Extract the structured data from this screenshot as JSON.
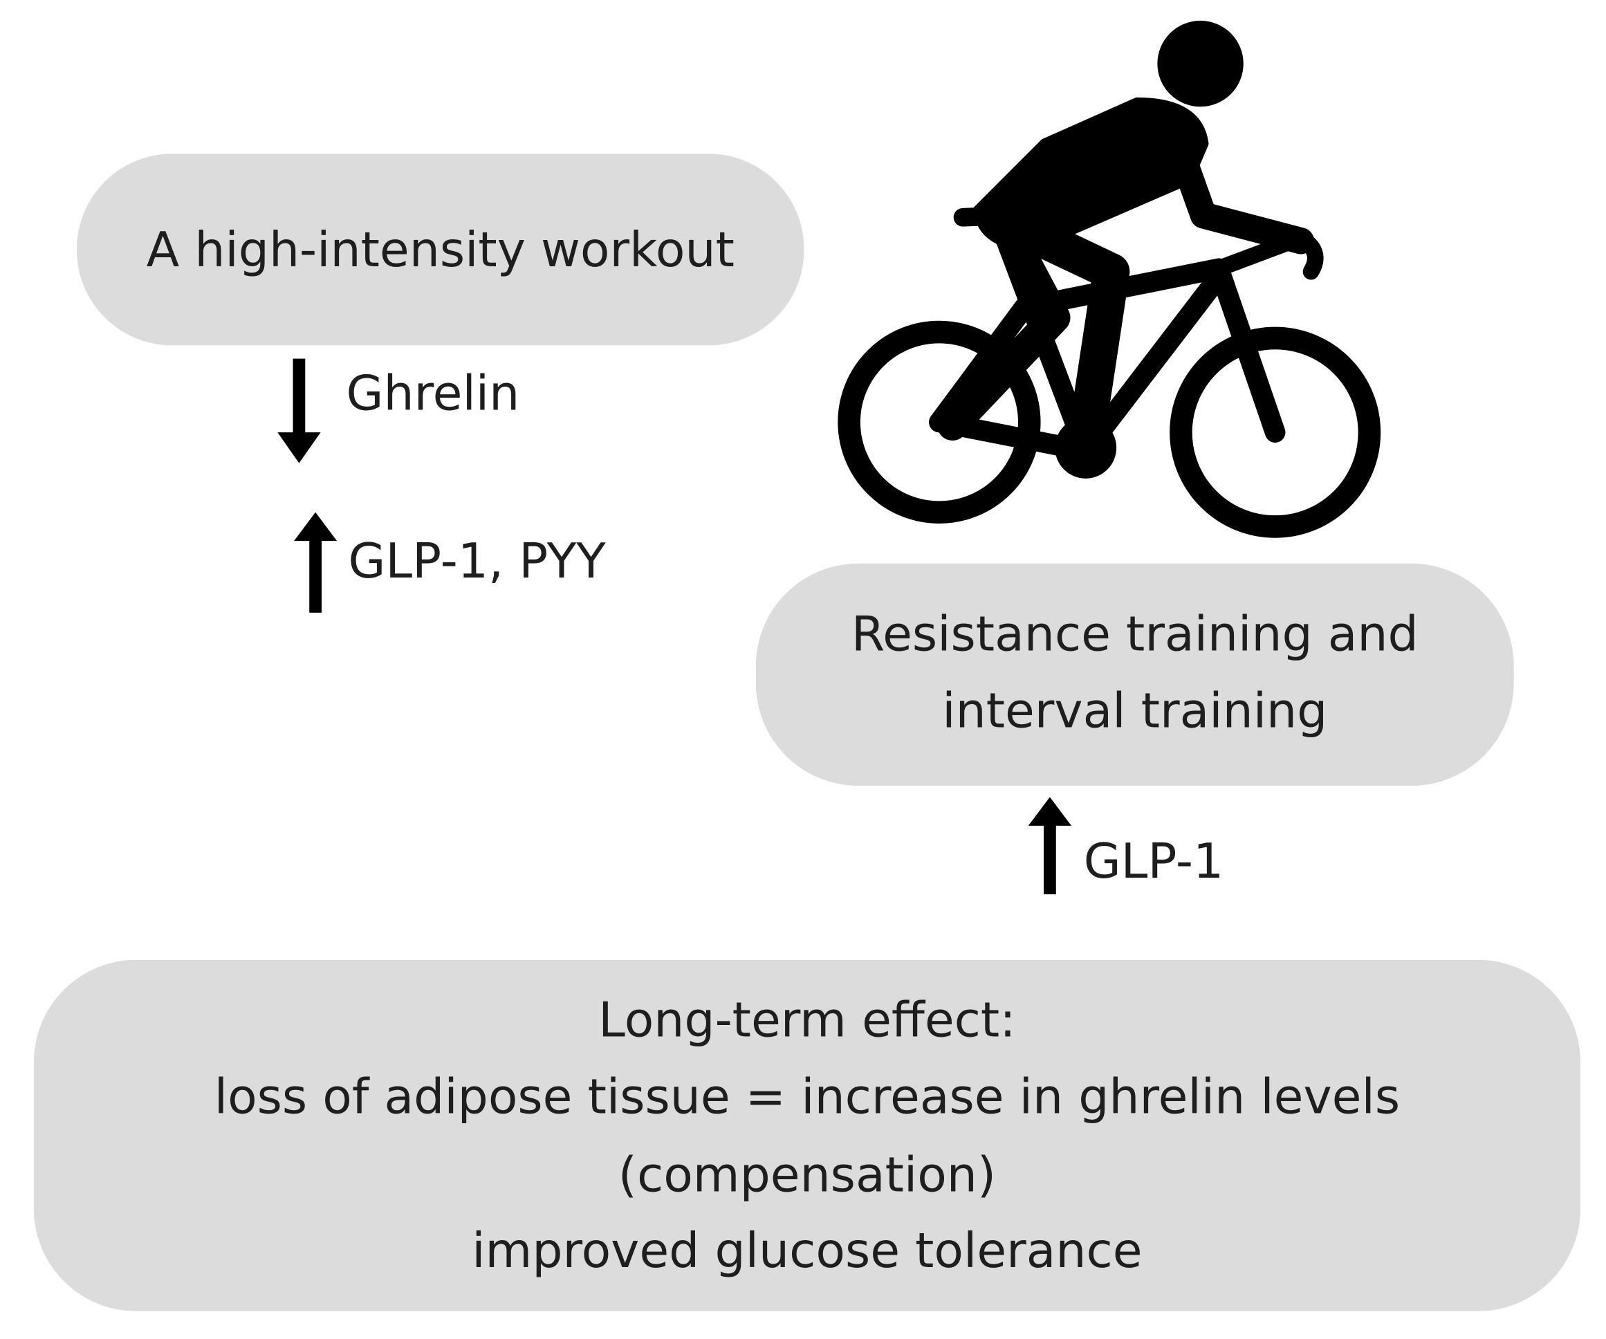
{
  "boxes": [
    {
      "lines": [
        "A high-intensity workout"
      ]
    },
    {
      "lines": [
        "Resistance training and",
        "interval training"
      ]
    },
    {
      "lines": [
        "Long-term effect:",
        "loss of adipose tissue = increase in ghrelin levels",
        "(compensation)",
        "improved glucose tolerance"
      ]
    }
  ],
  "labels": [
    "Ghrelin",
    "GLP-1, PYY",
    "GLP-1"
  ]
}
